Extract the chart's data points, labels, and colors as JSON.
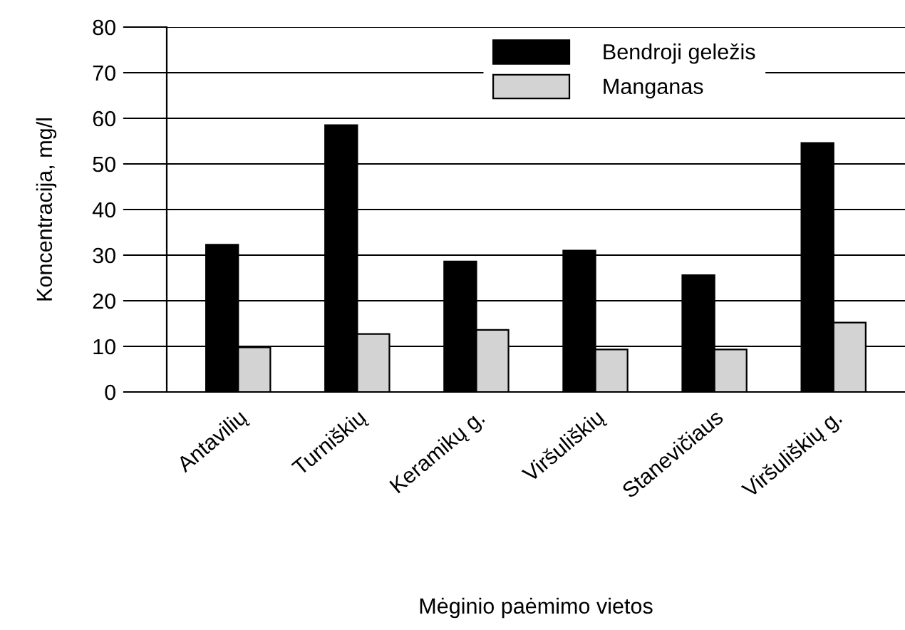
{
  "chart_data": {
    "type": "bar",
    "xlabel": "Mėginio paėmimo vietos",
    "ylabel": "Koncentracija, mg/l",
    "categories": [
      "Antavilių",
      "Turniškių",
      "Keramikų g.",
      "Viršuliškių",
      "Stanevičiaus",
      "Viršuliškių g."
    ],
    "series": [
      {
        "name": "Bendroji geležis",
        "color": "#000000",
        "values": [
          32.3,
          58.5,
          28.6,
          31.0,
          25.6,
          54.6
        ]
      },
      {
        "name": "Manganas",
        "color": "#d3d3d3",
        "values": [
          9.8,
          12.7,
          13.6,
          9.3,
          9.3,
          15.2
        ]
      }
    ],
    "ylim": [
      0,
      80
    ],
    "yticks": [
      0,
      10,
      20,
      30,
      40,
      50,
      60,
      70,
      80
    ],
    "grid": "y",
    "legend": "top"
  }
}
